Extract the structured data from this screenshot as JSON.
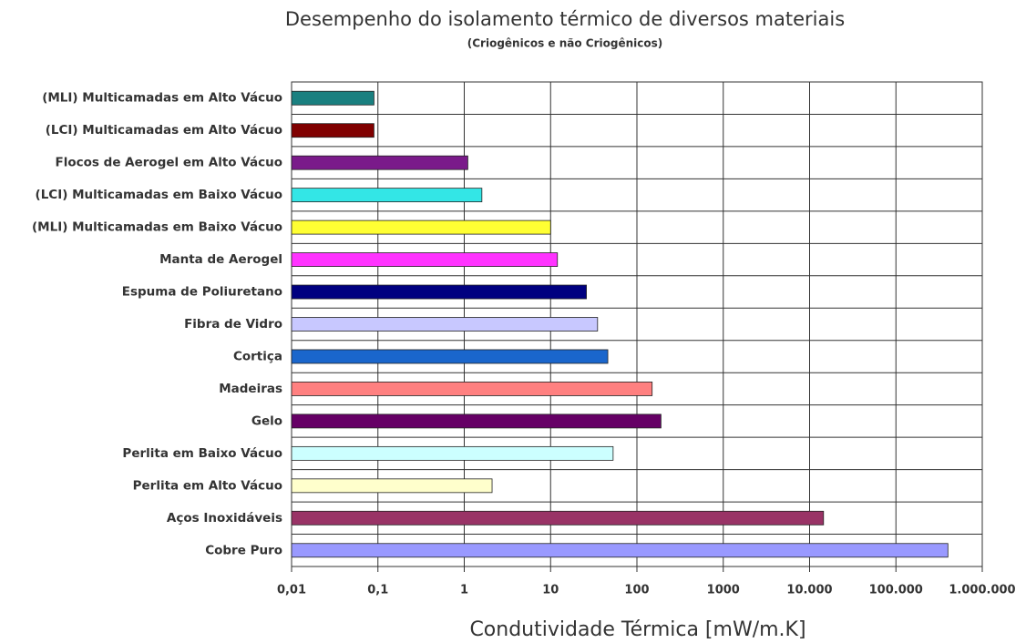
{
  "chart_data": {
    "type": "barh",
    "title": "Desempenho do isolamento térmico de diversos materiais",
    "subtitle": "(Criogênicos e não Criogênicos)",
    "xlabel": "Condutividade Térmica [mW/m.K]",
    "log_x": true,
    "grid": true,
    "categories": [
      "(MLI) Multicamadas em Alto Vácuo",
      "(LCI) Multicamadas em Alto Vácuo",
      "Flocos de Aerogel em Alto Vácuo",
      "(LCI) Multicamadas em Baixo Vácuo",
      "(MLI) Multicamadas em Baixo Vácuo",
      "Manta de Aerogel",
      "Espuma de Poliuretano",
      "Fibra de Vidro",
      "Cortiça",
      "Madeiras",
      "Gelo",
      "Perlita em Baixo Vácuo",
      "Perlita em Alto Vácuo",
      "Aços Inoxidáveis",
      "Cobre Puro"
    ],
    "values": [
      0.09,
      0.09,
      1.1,
      1.6,
      10,
      12,
      26,
      35,
      46,
      150,
      190,
      53,
      2.1,
      14500,
      400000
    ],
    "colors": [
      "#1a8080",
      "#800000",
      "#7a1a8a",
      "#33e6e6",
      "#ffff33",
      "#ff33ff",
      "#000080",
      "#c8c8ff",
      "#1a66cc",
      "#ff8080",
      "#660066",
      "#ccffff",
      "#ffffcc",
      "#993366",
      "#9999ff"
    ],
    "xlim": [
      0.01,
      1000000
    ],
    "xticks": [
      {
        "value": 0.01,
        "label": "0,01"
      },
      {
        "value": 0.1,
        "label": "0,1"
      },
      1,
      10,
      100,
      1000,
      {
        "value": 10000,
        "label": "10.000"
      },
      {
        "value": 100000,
        "label": "100.000"
      },
      {
        "value": 1000000,
        "label": "1.000.000"
      }
    ]
  }
}
